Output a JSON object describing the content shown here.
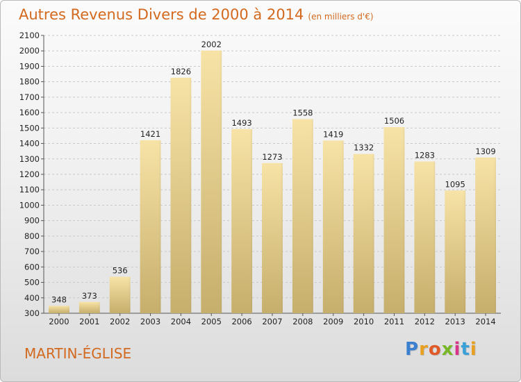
{
  "header": {
    "title": "Autres Revenus Divers de 2000 à 2014",
    "subtitle": "(en milliers d'€)"
  },
  "footer": {
    "commune": "MARTIN-ÉGLISE",
    "logo_letters": [
      "P",
      "r",
      "o",
      "x",
      "i",
      "t",
      "i"
    ]
  },
  "colors": {
    "title": "#d2691e",
    "bar_light": "#f7e3a6",
    "bar_dark": "#c8b06e",
    "grid": "#c9c9c9",
    "logo": [
      "#3a7fd0",
      "#e8a020",
      "#e05a28",
      "#78b828",
      "#d8348a",
      "#3aa0d8",
      "#e8a020"
    ]
  },
  "chart_data": {
    "type": "bar",
    "categories": [
      "2000",
      "2001",
      "2002",
      "2003",
      "2004",
      "2005",
      "2006",
      "2007",
      "2008",
      "2009",
      "2010",
      "2011",
      "2012",
      "2013",
      "2014"
    ],
    "values": [
      348,
      373,
      536,
      1421,
      1826,
      2002,
      1493,
      1273,
      1558,
      1419,
      1332,
      1506,
      1283,
      1095,
      1309
    ],
    "value_labels": [
      "348",
      "373",
      "536",
      "1421",
      "1826",
      "2002",
      "1493",
      "1273",
      "1558",
      "1419",
      "1332",
      "1506",
      "1283",
      "1095",
      "1309"
    ],
    "ylim": [
      300,
      2100
    ],
    "yticks": [
      "300",
      "400",
      "500",
      "600",
      "700",
      "800",
      "900",
      "1000",
      "1100",
      "1200",
      "1300",
      "1400",
      "1500",
      "1600",
      "1700",
      "1800",
      "1900",
      "2000",
      "2100"
    ],
    "grid": true,
    "xlabel": "",
    "ylabel": ""
  }
}
